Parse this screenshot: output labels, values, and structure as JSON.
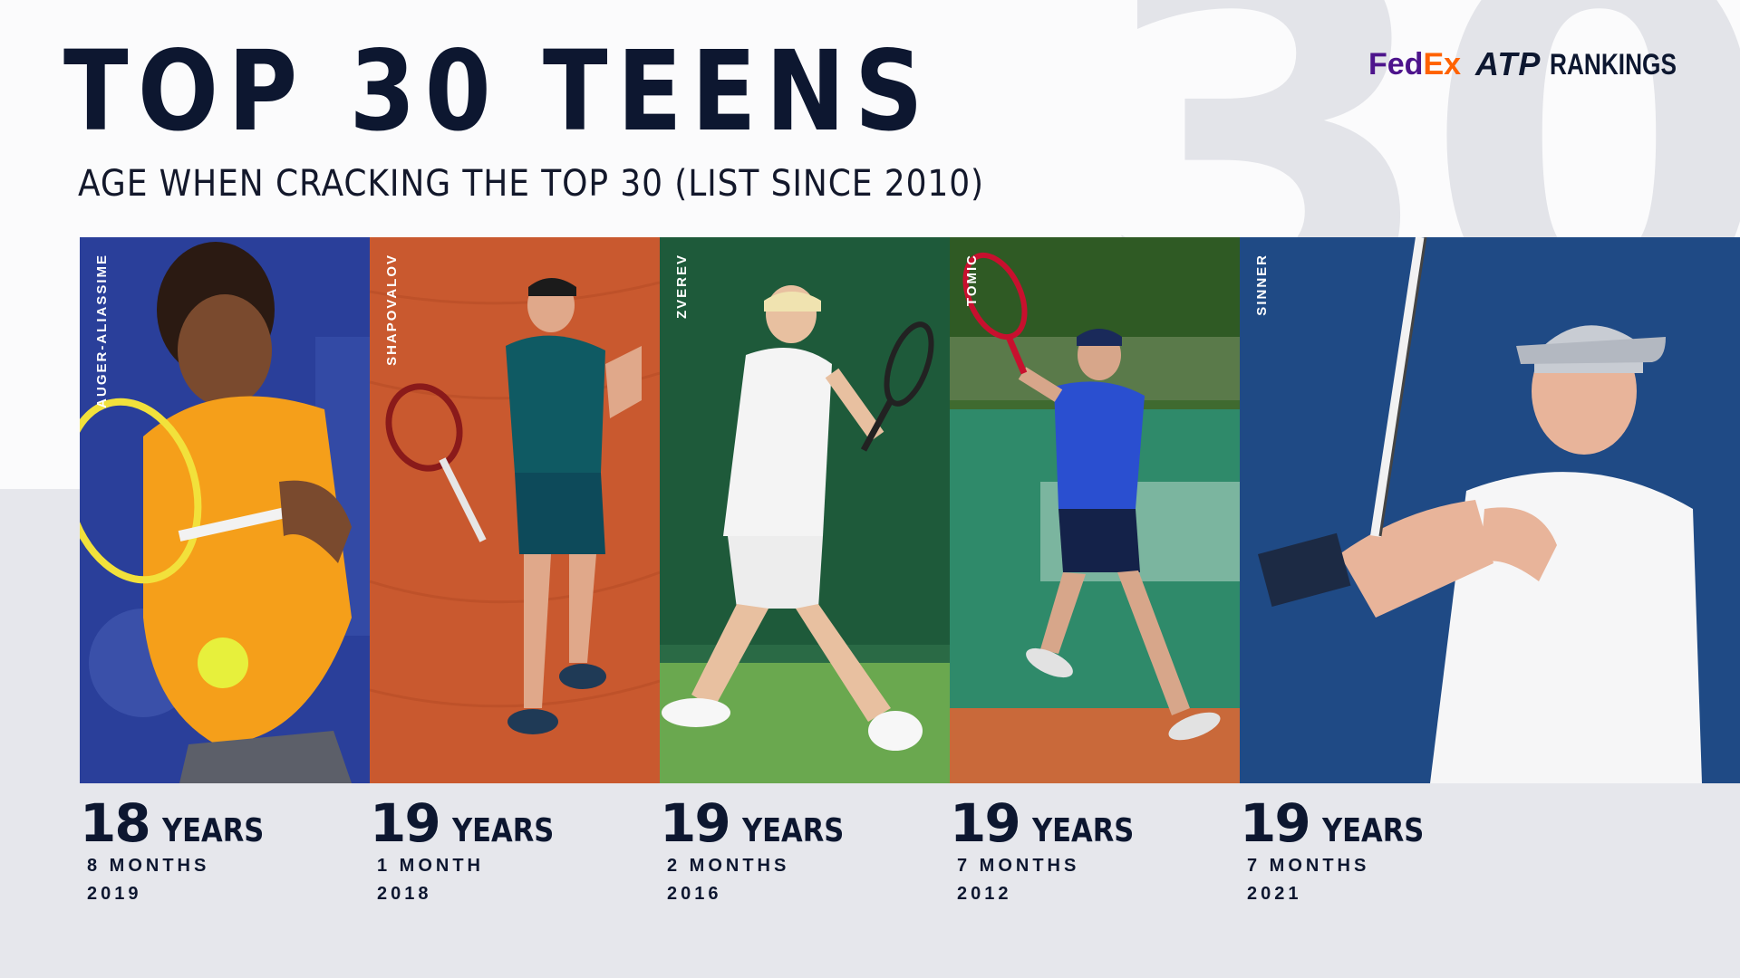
{
  "header": {
    "title": "TOP 30 TEENS",
    "subtitle": "AGE WHEN CRACKING THE TOP 30 (LIST SINCE 2010)",
    "background_number": "30"
  },
  "brand": {
    "fed": "Fed",
    "ex": "Ex",
    "atp": "ATP",
    "rankings": "RANKINGS"
  },
  "players": [
    {
      "name": "AUGER-ALIASSIME",
      "years": "18",
      "years_unit": "YEARS",
      "months": "8 MONTHS",
      "year": "2019"
    },
    {
      "name": "SHAPOVALOV",
      "years": "19",
      "years_unit": "YEARS",
      "months": "1 MONTH",
      "year": "2018"
    },
    {
      "name": "ZVEREV",
      "years": "19",
      "years_unit": "YEARS",
      "months": "2 MONTHS",
      "year": "2016"
    },
    {
      "name": "TOMIC",
      "years": "19",
      "years_unit": "YEARS",
      "months": "7 MONTHS",
      "year": "2012"
    },
    {
      "name": "SINNER",
      "years": "19",
      "years_unit": "YEARS",
      "months": "7 MONTHS",
      "year": "2021"
    }
  ],
  "colors": {
    "navy": "#0d1730",
    "fedex_purple": "#4d148c",
    "fedex_orange": "#ff6200"
  }
}
